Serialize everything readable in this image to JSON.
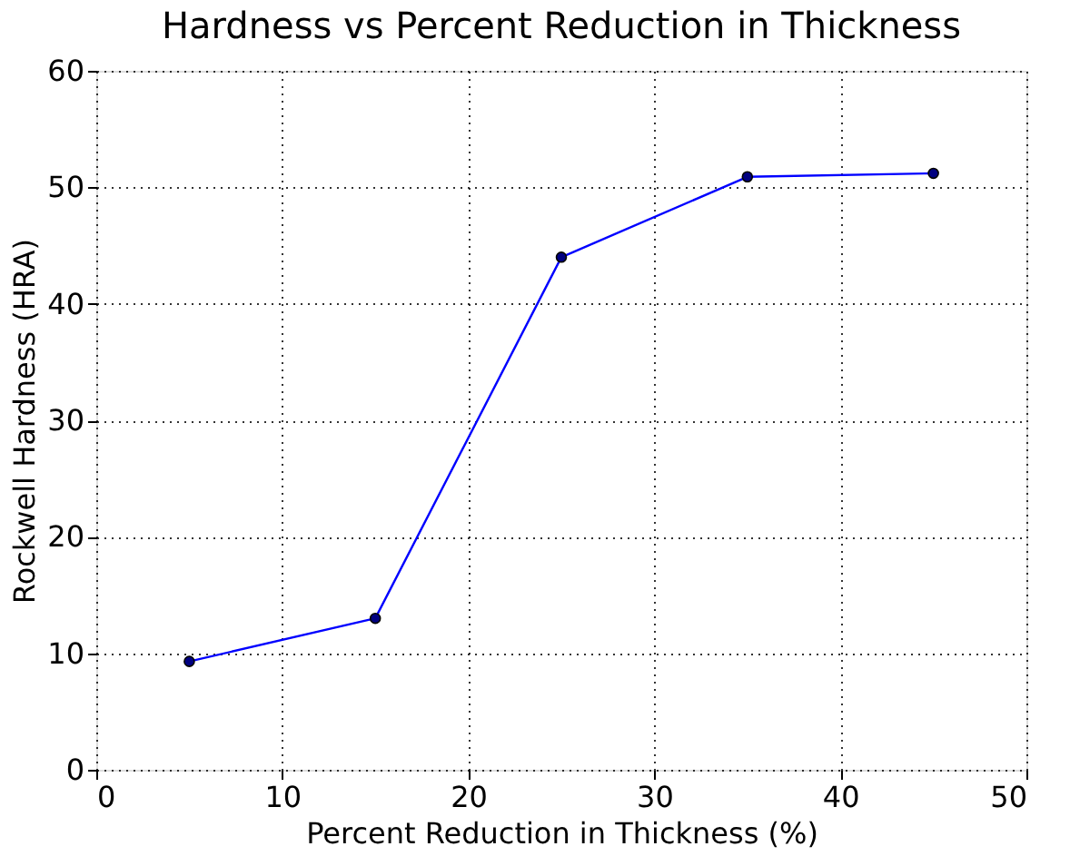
{
  "chart_data": {
    "type": "line",
    "title": "Hardness vs Percent Reduction in Thickness",
    "xlabel": "Percent Reduction in Thickness (%)",
    "ylabel": "Rockwell Hardness (HRA)",
    "x": [
      5,
      15,
      25,
      35,
      45
    ],
    "series": [
      {
        "color": "#0000ff",
        "values": [
          9.3,
          13.0,
          44.0,
          50.9,
          51.2
        ]
      }
    ],
    "xlim": [
      0,
      50
    ],
    "ylim": [
      0,
      60
    ],
    "xticks": [
      0,
      10,
      20,
      30,
      40,
      50
    ],
    "yticks": [
      0,
      10,
      20,
      30,
      40,
      50,
      60
    ],
    "grid": true,
    "marker": "circle",
    "line_style": "solid"
  }
}
